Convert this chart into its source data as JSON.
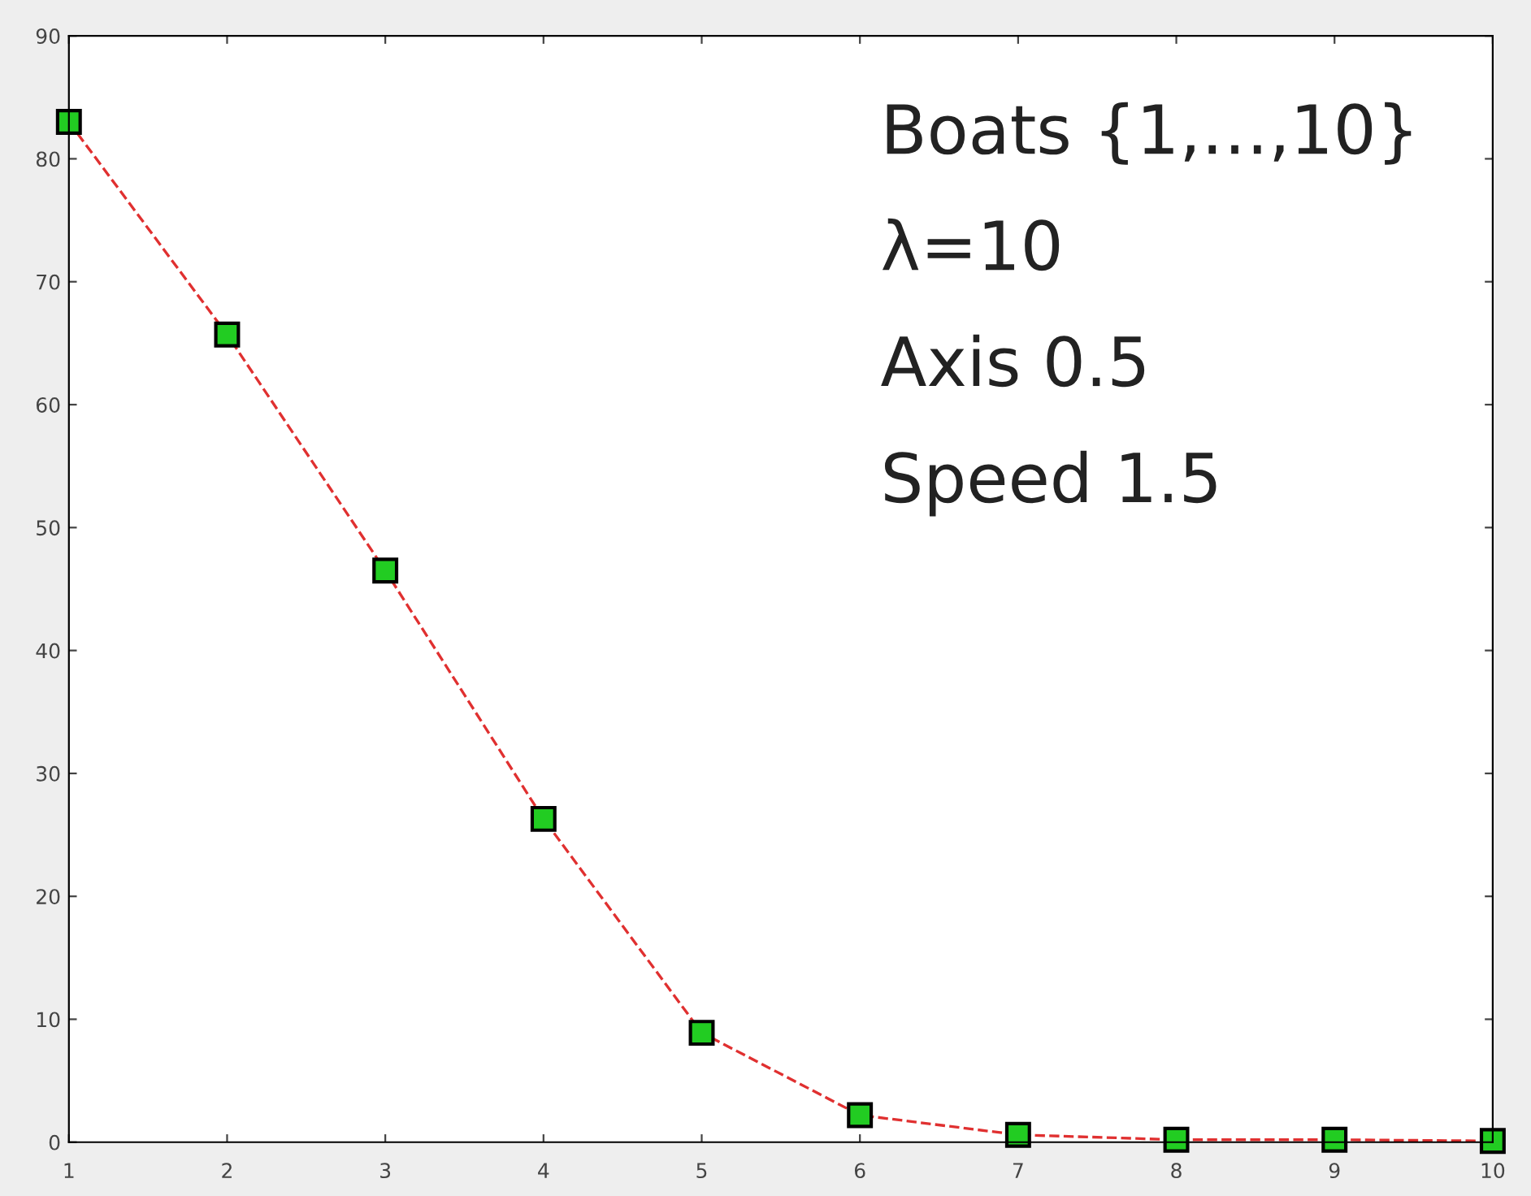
{
  "chart_data": {
    "type": "line",
    "x": [
      1,
      2,
      3,
      4,
      5,
      6,
      7,
      8,
      9,
      10
    ],
    "series": [
      {
        "color": "#e03030",
        "values": [
          83,
          65.7,
          46.5,
          26.3,
          8.9,
          2.2,
          0.6,
          0.2,
          0.2,
          0.1
        ]
      }
    ],
    "marker": "square",
    "line_style": "dashed",
    "grid": false,
    "legend": false,
    "xlim": [
      1,
      10
    ],
    "xticks": [
      1,
      2,
      3,
      4,
      5,
      6,
      7,
      8,
      9,
      10
    ],
    "ylim": [
      0,
      90
    ],
    "yticks": [
      0,
      10,
      20,
      30,
      40,
      50,
      60,
      70,
      80,
      90
    ],
    "annotations": [
      "Boats {1,…,10}",
      "λ=10",
      "Axis 0.5",
      "Speed 1.5"
    ]
  }
}
